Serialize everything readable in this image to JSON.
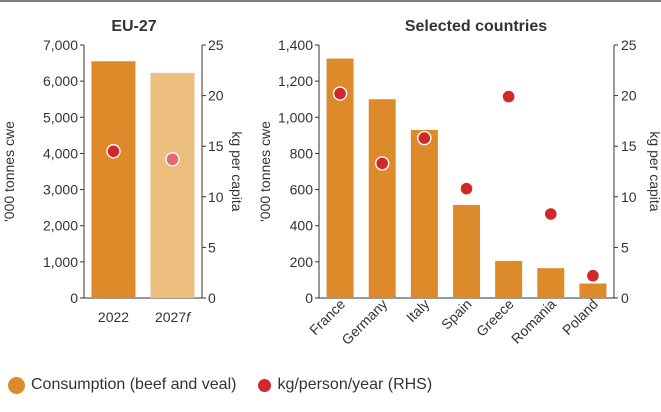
{
  "colors": {
    "bar": "#dd8a2b",
    "bar_forecast": "#edbf7f",
    "dot": "#d1282a",
    "dot_forecast": "#e9686d",
    "text": "#333333",
    "axis": "#333333",
    "top_rule": "#333333"
  },
  "legend": {
    "bar_label": "Consumption (beef and veal)",
    "dot_label": "kg/person/year (RHS)"
  },
  "chart_data": [
    {
      "type": "bar",
      "title": "EU-27",
      "categories": [
        "2022",
        "2027f"
      ],
      "category_labels": [
        {
          "text": "2022",
          "italic_suffix": ""
        },
        {
          "text": "2027",
          "italic_suffix": "f"
        }
      ],
      "ylabel": "'000 tonnes cwe",
      "y2label": "kg per capita",
      "ylim": [
        0,
        7000
      ],
      "y2lim": [
        0,
        25
      ],
      "yticks": [
        0,
        1000,
        2000,
        3000,
        4000,
        5000,
        6000,
        7000
      ],
      "ytick_labels": [
        "0",
        "1,000",
        "2,000",
        "3,000",
        "4,000",
        "5,000",
        "6,000",
        "7,000"
      ],
      "y2ticks": [
        0,
        5,
        10,
        15,
        20,
        25
      ],
      "y2tick_labels": [
        "0",
        "5",
        "10",
        "15",
        "20",
        "25"
      ],
      "grid": false,
      "series": [
        {
          "kind": "bar",
          "axis": "left",
          "values": [
            6550,
            6230
          ],
          "forecast": [
            false,
            true
          ]
        },
        {
          "kind": "dot",
          "axis": "right",
          "values": [
            14.5,
            13.7
          ],
          "forecast": [
            false,
            true
          ]
        }
      ]
    },
    {
      "type": "bar",
      "title": "Selected countries",
      "categories": [
        "France",
        "Germany",
        "Italy",
        "Spain",
        "Greece",
        "Romania",
        "Poland"
      ],
      "ylabel": "'000 tonnes cwe",
      "y2label": "kg per capita",
      "ylim": [
        0,
        1400
      ],
      "y2lim": [
        0,
        25
      ],
      "yticks": [
        0,
        200,
        400,
        600,
        800,
        1000,
        1200,
        1400
      ],
      "ytick_labels": [
        "0",
        "200",
        "400",
        "600",
        "800",
        "1,000",
        "1,200",
        "1,400"
      ],
      "y2ticks": [
        0,
        5,
        10,
        15,
        20,
        25
      ],
      "y2tick_labels": [
        "0",
        "5",
        "10",
        "15",
        "20",
        "25"
      ],
      "grid": false,
      "series": [
        {
          "kind": "bar",
          "axis": "left",
          "values": [
            1325,
            1100,
            930,
            515,
            205,
            165,
            80
          ]
        },
        {
          "kind": "dot",
          "axis": "right",
          "values": [
            20.2,
            13.3,
            15.8,
            10.8,
            19.9,
            8.3,
            2.2
          ]
        }
      ]
    }
  ]
}
